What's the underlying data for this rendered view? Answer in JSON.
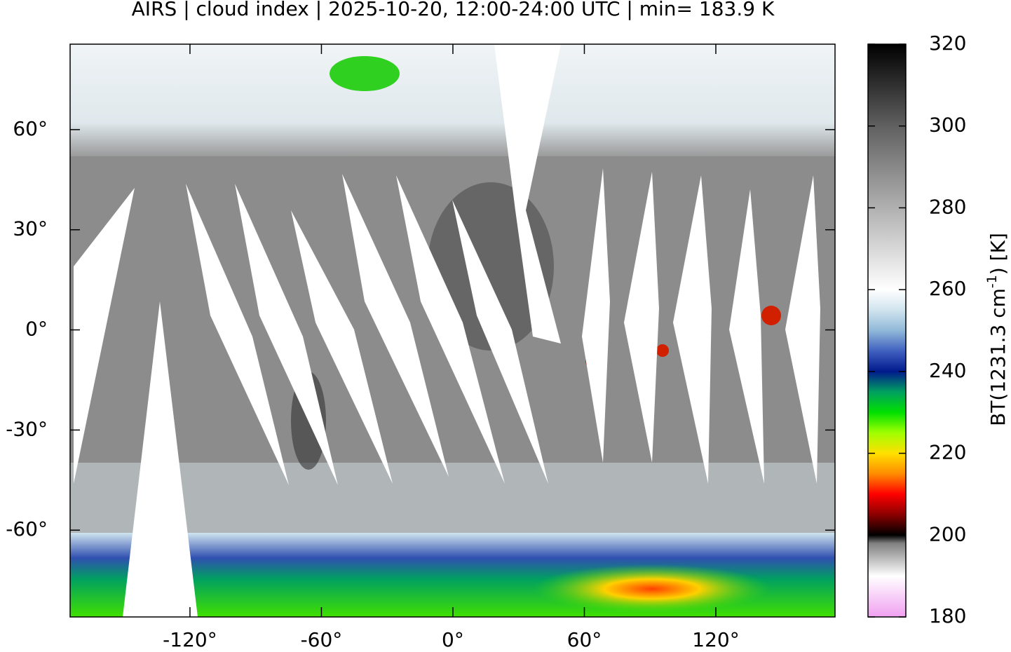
{
  "map": {
    "title": "AIRS | cloud index | 2025-10-20, 12:00-24:00 UTC | min= 183.9 K",
    "xlim": [
      -174.7,
      174.4
    ],
    "ylim": [
      -86,
      85.6
    ],
    "xticks": [
      {
        "value": -120,
        "label": "-120°"
      },
      {
        "value": -60,
        "label": "-60°"
      },
      {
        "value": 0,
        "label": "0°"
      },
      {
        "value": 60,
        "label": "60°"
      },
      {
        "value": 120,
        "label": "120°"
      }
    ],
    "yticks": [
      {
        "value": 60,
        "label": "60°"
      },
      {
        "value": 30,
        "label": "30°"
      },
      {
        "value": 0,
        "label": "0°"
      },
      {
        "value": -30,
        "label": "-30°"
      },
      {
        "value": -60,
        "label": "-60°"
      }
    ]
  },
  "colorbar": {
    "lim": [
      180,
      320
    ],
    "ticks": [
      180,
      200,
      220,
      240,
      260,
      280,
      300,
      320
    ],
    "label_prefix": "BT(1231.3 cm",
    "label_sup": "-1",
    "label_suffix": ") [K]",
    "stops": [
      {
        "value": 180,
        "color": "#f0a0f0"
      },
      {
        "value": 190,
        "color": "#ffffff"
      },
      {
        "value": 198,
        "color": "#808080"
      },
      {
        "value": 200,
        "color": "#000000"
      },
      {
        "value": 205,
        "color": "#8b0000"
      },
      {
        "value": 210,
        "color": "#ff0000"
      },
      {
        "value": 215,
        "color": "#ff8c00"
      },
      {
        "value": 220,
        "color": "#ffe000"
      },
      {
        "value": 225,
        "color": "#a0ff00"
      },
      {
        "value": 230,
        "color": "#00e000"
      },
      {
        "value": 235,
        "color": "#00a060"
      },
      {
        "value": 240,
        "color": "#001a8c"
      },
      {
        "value": 245,
        "color": "#4060c0"
      },
      {
        "value": 250,
        "color": "#90b8d8"
      },
      {
        "value": 255,
        "color": "#d0e4ee"
      },
      {
        "value": 260,
        "color": "#ffffff"
      },
      {
        "value": 280,
        "color": "#b0b0b0"
      },
      {
        "value": 300,
        "color": "#606060"
      },
      {
        "value": 320,
        "color": "#000000"
      }
    ]
  }
}
